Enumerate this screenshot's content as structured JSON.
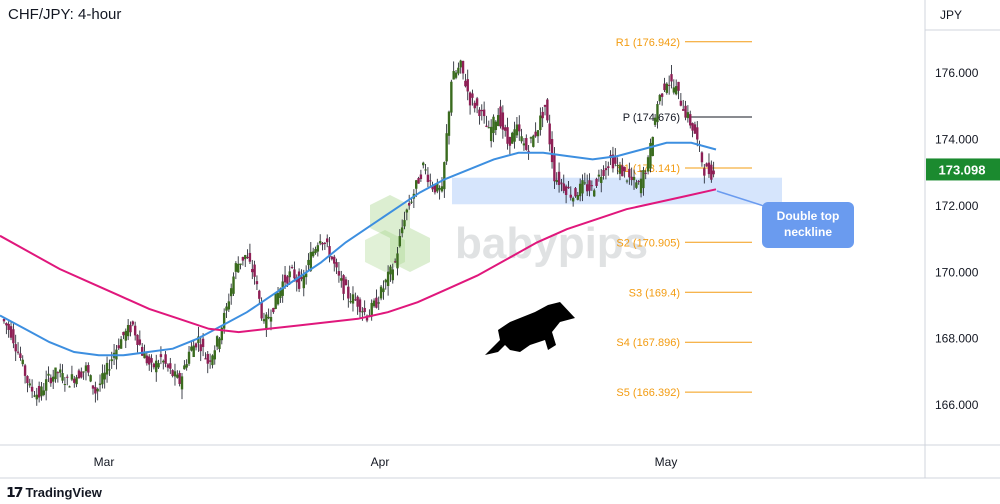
{
  "chart_data": {
    "type": "candlestick",
    "title": "CHF/JPY: 4-hour",
    "currency": "JPY",
    "y_ticks": [
      "176.000",
      "174.000",
      "172.000",
      "170.000",
      "168.000",
      "166.000"
    ],
    "y_tick_values": [
      176,
      174,
      172,
      170,
      168,
      166
    ],
    "ylim": [
      164.8,
      177.9
    ],
    "x_labels": [
      "Mar",
      "Apr",
      "May"
    ],
    "last_price": "173.098",
    "last_price_value": 173.098,
    "colors": {
      "up": "#26a69a",
      "down": "#7b1fa2",
      "bull_fill": "#3a6b1e",
      "bear_fill": "#8e1f55",
      "ma_fast": "#3d8fe0",
      "ma_slow": "#e0177c",
      "level": "#f39c12",
      "pivot": "#131722",
      "zone": "#cfe0fb",
      "callout": "#6a9bef"
    },
    "pivot_levels": [
      {
        "label": "R1 (176.942)",
        "value": 176.942,
        "kind": "r"
      },
      {
        "label": "P (174.676)",
        "value": 174.676,
        "kind": "p"
      },
      {
        "label": "S1 (173.141)",
        "value": 173.141,
        "kind": "s"
      },
      {
        "label": "S2 (170.905)",
        "value": 170.905,
        "kind": "s"
      },
      {
        "label": "S3 (169.4)",
        "value": 169.4,
        "kind": "s"
      },
      {
        "label": "S4 (167.896)",
        "value": 167.896,
        "kind": "s"
      },
      {
        "label": "S5 (166.392)",
        "value": 166.392,
        "kind": "s"
      }
    ],
    "zone": {
      "from": 172.05,
      "to": 172.85
    },
    "callout": "Double top neckline",
    "watermark": "babypips",
    "price_path": [
      168.6,
      168.2,
      167.4,
      166.5,
      166.3,
      166.8,
      167.0,
      166.7,
      166.9,
      167.1,
      166.4,
      166.9,
      167.6,
      168.1,
      168.4,
      167.6,
      167.1,
      167.4,
      167.0,
      166.7,
      167.6,
      168.0,
      167.3,
      167.9,
      168.9,
      170.2,
      170.5,
      169.9,
      168.4,
      169.0,
      169.7,
      170.0,
      169.6,
      170.5,
      171.1,
      170.6,
      169.8,
      169.3,
      169.1,
      168.7,
      169.1,
      169.7,
      170.3,
      171.7,
      172.4,
      173.2,
      172.6,
      172.4,
      175.8,
      176.2,
      175.2,
      174.9,
      174.2,
      174.8,
      173.9,
      174.3,
      173.7,
      174.2,
      175.0,
      172.9,
      172.6,
      172.3,
      172.6,
      172.5,
      173.0,
      173.4,
      173.1,
      172.8,
      172.6,
      173.3,
      175.1,
      175.8,
      175.5,
      174.8,
      174.2,
      173.1,
      172.95
    ],
    "ma_fast": [
      168.7,
      168.3,
      167.9,
      167.6,
      167.5,
      167.5,
      167.6,
      167.7,
      168.0,
      168.4,
      168.8,
      169.3,
      169.8,
      170.3,
      170.9,
      171.4,
      171.9,
      172.4,
      172.8,
      173.1,
      173.4,
      173.6,
      173.6,
      173.5,
      173.4,
      173.5,
      173.7,
      173.9,
      173.9,
      173.7
    ],
    "ma_slow": [
      171.1,
      170.6,
      170.1,
      169.7,
      169.3,
      168.9,
      168.6,
      168.3,
      168.2,
      168.3,
      168.4,
      168.5,
      168.6,
      168.8,
      169.1,
      169.5,
      169.9,
      170.4,
      170.9,
      171.3,
      171.6,
      171.9,
      172.1,
      172.3,
      172.5
    ],
    "annotations": {
      "flag": "Double top neckline"
    }
  }
}
